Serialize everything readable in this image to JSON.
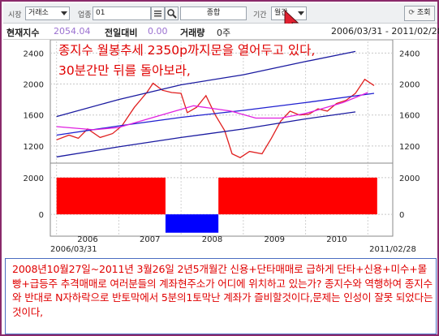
{
  "toolbar": {
    "market_label": "시장",
    "market_value": "거래소",
    "index_label": "업종",
    "index_code": "01",
    "index_name": "종합",
    "period_label": "기간",
    "period_value": "월간",
    "query_button": "조회"
  },
  "info": {
    "current_label": "현재지수",
    "current_value": "2054.04",
    "change_label": "전일대비",
    "change_value": "0.00",
    "volume_label": "거래량",
    "volume_value": "0주",
    "date_range": "2006/03/31 - 2011/02/28"
  },
  "overlay": {
    "line1": "종지수 월봉추세 2350p까지문을 열어두고 있다,",
    "line2": "30분간만 뒤를 돌아보라,"
  },
  "colors": {
    "price": "#e02020",
    "band": "#1a1aa0",
    "ma": "#e020e0",
    "trend": "#2020d0",
    "pos_bar": "#ff0000",
    "neg_bar": "#0000ff",
    "overlay_text": "#e00000"
  },
  "chart_data": [
    {
      "type": "line",
      "y_ticks_left": [
        "2400",
        "2000",
        "1600",
        "1200"
      ],
      "y_ticks_right": [
        "2400",
        "2000",
        "1600",
        "1200"
      ],
      "ylim": [
        1000,
        2550
      ],
      "x_range": [
        2005.9,
        2011.4
      ],
      "grid": true,
      "series": [
        {
          "x": [
            2006.0,
            2006.2,
            2006.35,
            2006.5,
            2006.7,
            2006.9,
            2007.05,
            2007.25,
            2007.45,
            2007.55,
            2007.7,
            2007.85,
            2008.0,
            2008.1,
            2008.25,
            2008.4,
            2008.55,
            2008.7,
            2008.82,
            2008.95,
            2009.1,
            2009.3,
            2009.45,
            2009.6,
            2009.75,
            2009.9,
            2010.05,
            2010.2,
            2010.35,
            2010.5,
            2010.65,
            2010.8,
            2010.95,
            2011.1
          ],
          "values": [
            1280,
            1340,
            1300,
            1420,
            1310,
            1360,
            1460,
            1700,
            1890,
            2010,
            1920,
            1890,
            1880,
            1630,
            1700,
            1850,
            1600,
            1400,
            1100,
            1050,
            1130,
            1100,
            1300,
            1520,
            1650,
            1600,
            1610,
            1680,
            1650,
            1750,
            1790,
            1880,
            2060,
            1980
          ]
        },
        {
          "x": [
            2006.0,
            2007.0,
            2008.0,
            2009.0,
            2010.0,
            2010.8
          ],
          "values": [
            1580,
            1800,
            1990,
            2120,
            2290,
            2420
          ]
        },
        {
          "x": [
            2006.0,
            2007.0,
            2008.0,
            2009.0,
            2010.0,
            2010.8
          ],
          "values": [
            1060,
            1190,
            1310,
            1420,
            1550,
            1640
          ]
        },
        {
          "x": [
            2006.0,
            2007.0,
            2008.0,
            2009.0,
            2010.0,
            2011.1
          ],
          "values": [
            1340,
            1460,
            1570,
            1660,
            1760,
            1880
          ]
        },
        {
          "x": [
            2006.0,
            2006.6,
            2007.0,
            2007.6,
            2008.2,
            2008.8,
            2009.2,
            2009.6,
            2010.0,
            2010.6,
            2011.0
          ],
          "values": [
            1450,
            1410,
            1440,
            1580,
            1720,
            1650,
            1560,
            1560,
            1620,
            1760,
            1890
          ]
        }
      ]
    },
    {
      "type": "bar",
      "y_ticks_left": [
        "2000",
        "0"
      ],
      "y_ticks_right": [
        "2000",
        "0"
      ],
      "ylim": [
        -1100,
        2700
      ],
      "x_range": [
        2005.9,
        2011.4
      ],
      "bars": [
        {
          "start": 2006.0,
          "end": 2007.75,
          "value": 2000
        },
        {
          "start": 2007.75,
          "end": 2008.6,
          "value": -1000
        },
        {
          "start": 2008.6,
          "end": 2011.15,
          "value": 2000
        }
      ],
      "x_tick_labels": [
        "2006",
        "2007",
        "2008",
        "2009",
        "2010"
      ],
      "start_date": "2006/03/31",
      "end_date": "2011/02/28"
    }
  ],
  "note": {
    "text": "2008년10월27일~2011년 3월26일 2년5개월간 신용+단타매매로 급하게 단타+신용+미수+몰빵+급등주 추격매매로 여러분들의 계좌현주소가 어디에 위치하고 있는가? 종지수와 역행하여 종지수와 반대로 N자하락으로 반토막에서 5분의1토막난 계좌가 즐비할것이다,문제는 인성이 잘못 되었다는 것이다,"
  }
}
